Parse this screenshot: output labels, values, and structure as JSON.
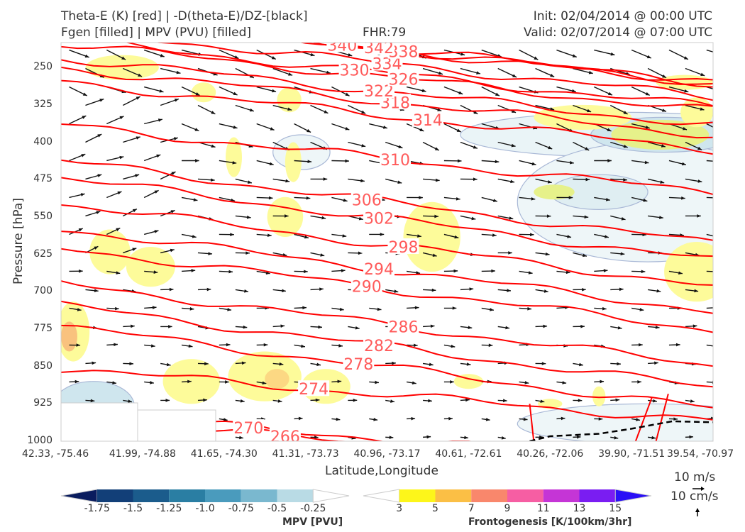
{
  "header": {
    "title_left_1": "Theta-E (K) [red] | -D(theta-E)/DZ-[black]",
    "title_left_2": "Fgen [filled] | MPV (PVU) [filled]",
    "fhr": "FHR:79",
    "init": "Init: 02/04/2014 @ 00:00 UTC",
    "valid": "Valid: 02/07/2014 @ 07:00 UTC"
  },
  "axes": {
    "ylabel": "Pressure [hPa]",
    "xlabel": "Latitude,Longitude",
    "yticks": [
      "250",
      "325",
      "400",
      "475",
      "550",
      "625",
      "700",
      "775",
      "850",
      "925",
      "1000"
    ],
    "xticks": [
      "42.33, -75.46",
      "41.99, -74.88",
      "41.65, -74.30",
      "41.31, -73.73",
      "40.96, -73.17",
      "40.61, -72.61",
      "40.26, -72.06",
      "39.90, -71.51",
      "39.54, -70.97"
    ]
  },
  "vector_key": {
    "label1": "10 m/s",
    "label2": "10 cm/s"
  },
  "colorbars": {
    "mpv": {
      "title": "MPV [PVU]",
      "ticks": [
        "-1.75",
        "-1.5",
        "-1.25",
        "-1.0",
        "-0.75",
        "-0.5",
        "-0.25"
      ],
      "colors": [
        "#0a1c5e",
        "#123f78",
        "#1b5c8c",
        "#2a7ea3",
        "#4a9bbd",
        "#7ab8cf",
        "#b9dbe5",
        "#ffffff"
      ]
    },
    "fgen": {
      "title": "Frontogenesis [K/100km/3hr]",
      "ticks": [
        "3",
        "5",
        "7",
        "9",
        "11",
        "13",
        "15"
      ],
      "colors": [
        "#ffffff",
        "#fdf61a",
        "#fbbf45",
        "#f9876c",
        "#f65ea3",
        "#c535d6",
        "#7a1df2",
        "#2a10f6"
      ]
    }
  },
  "chart_data": {
    "type": "cross-section",
    "y_axis": {
      "label": "Pressure [hPa]",
      "range": [
        200,
        1000
      ],
      "inverted": true
    },
    "x_axis": {
      "label": "Latitude,Longitude",
      "range": [
        0,
        8
      ]
    },
    "theta_e_contours": [
      {
        "label": "266",
        "x": 2.75,
        "p": 990
      },
      {
        "label": "270",
        "x": 2.3,
        "p": 973
      },
      {
        "label": "274",
        "x": 3.1,
        "p": 895
      },
      {
        "label": "278",
        "x": 3.65,
        "p": 845
      },
      {
        "label": "282",
        "x": 3.9,
        "p": 808
      },
      {
        "label": "286",
        "x": 4.2,
        "p": 770
      },
      {
        "label": "290",
        "x": 3.75,
        "p": 689
      },
      {
        "label": "294",
        "x": 3.9,
        "p": 654
      },
      {
        "label": "298",
        "x": 4.2,
        "p": 610
      },
      {
        "label": "302",
        "x": 3.9,
        "p": 552
      },
      {
        "label": "306",
        "x": 3.75,
        "p": 515
      },
      {
        "label": "310",
        "x": 4.1,
        "p": 435
      },
      {
        "label": "314",
        "x": 4.5,
        "p": 355
      },
      {
        "label": "318",
        "x": 4.1,
        "p": 320
      },
      {
        "label": "322",
        "x": 3.9,
        "p": 297
      },
      {
        "label": "326",
        "x": 4.2,
        "p": 273
      },
      {
        "label": "330",
        "x": 3.6,
        "p": 255
      },
      {
        "label": "334",
        "x": 4.0,
        "p": 242
      },
      {
        "label": "338",
        "x": 4.2,
        "p": 218
      },
      {
        "label": "340",
        "x": 3.45,
        "p": 205
      },
      {
        "label": "342",
        "x": 3.9,
        "p": 210
      }
    ],
    "dthetae_dz_zero_line": [
      [
        5.75,
        1000
      ],
      [
        6.0,
        990
      ],
      [
        6.6,
        985
      ],
      [
        7.0,
        975
      ],
      [
        7.5,
        960
      ],
      [
        8.0,
        962
      ]
    ]
  }
}
